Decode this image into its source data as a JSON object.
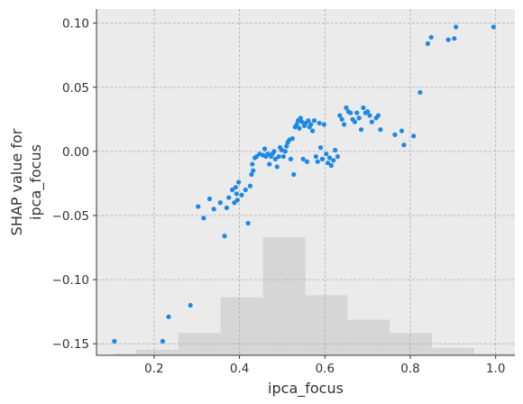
{
  "chart_data": {
    "type": "scatter",
    "title": "",
    "xlabel": "ipca_focus",
    "ylabel_lines": [
      "SHAP value for",
      "ipca_focus"
    ],
    "xlim": [
      0.065,
      1.045
    ],
    "ylim": [
      -0.159,
      0.111
    ],
    "grid": true,
    "background_color": "#ebebeb",
    "point_color": "#1e88e5",
    "histogram_color": "#d6d6d6",
    "x_ticks": [
      {
        "value": 0.2,
        "label": "0.2"
      },
      {
        "value": 0.4,
        "label": "0.4"
      },
      {
        "value": 0.6,
        "label": "0.6"
      },
      {
        "value": 0.8,
        "label": "0.8"
      },
      {
        "value": 1.0,
        "label": "1.0"
      }
    ],
    "y_ticks": [
      {
        "value": 0.1,
        "label": "0.10"
      },
      {
        "value": 0.05,
        "label": "0.05"
      },
      {
        "value": 0.0,
        "label": "0.00"
      },
      {
        "value": -0.05,
        "label": "−0.05"
      },
      {
        "value": -0.1,
        "label": "−0.10"
      },
      {
        "value": -0.15,
        "label": "−0.15"
      }
    ],
    "histogram": {
      "bin_edges": [
        0.11,
        0.158,
        0.257,
        0.356,
        0.455,
        0.554,
        0.653,
        0.752,
        0.851,
        0.95,
        1.045
      ],
      "counts": [
        1,
        3,
        12,
        31,
        63,
        32,
        19,
        12,
        4,
        1
      ]
    },
    "points": [
      [
        0.107,
        -0.148
      ],
      [
        0.22,
        -0.148
      ],
      [
        0.234,
        -0.129
      ],
      [
        0.285,
        -0.12
      ],
      [
        0.303,
        -0.043
      ],
      [
        0.316,
        -0.052
      ],
      [
        0.33,
        -0.037
      ],
      [
        0.34,
        -0.045
      ],
      [
        0.355,
        -0.04
      ],
      [
        0.365,
        -0.066
      ],
      [
        0.37,
        -0.044
      ],
      [
        0.375,
        -0.036
      ],
      [
        0.383,
        -0.03
      ],
      [
        0.388,
        -0.04
      ],
      [
        0.391,
        -0.028
      ],
      [
        0.393,
        -0.033
      ],
      [
        0.395,
        -0.038
      ],
      [
        0.398,
        -0.024
      ],
      [
        0.405,
        -0.034
      ],
      [
        0.414,
        -0.03
      ],
      [
        0.42,
        -0.056
      ],
      [
        0.425,
        -0.027
      ],
      [
        0.428,
        -0.018
      ],
      [
        0.43,
        -0.01
      ],
      [
        0.432,
        -0.015
      ],
      [
        0.436,
        -0.005
      ],
      [
        0.44,
        -0.004
      ],
      [
        0.447,
        -0.002
      ],
      [
        0.455,
        -0.003
      ],
      [
        0.459,
        0.002
      ],
      [
        0.462,
        -0.004
      ],
      [
        0.466,
        -0.002
      ],
      [
        0.47,
        -0.01
      ],
      [
        0.474,
        -0.004
      ],
      [
        0.477,
        -0.002
      ],
      [
        0.481,
        0.0
      ],
      [
        0.484,
        -0.006
      ],
      [
        0.488,
        -0.012
      ],
      [
        0.492,
        -0.004
      ],
      [
        0.495,
        0.003
      ],
      [
        0.499,
        0.001
      ],
      [
        0.503,
        -0.004
      ],
      [
        0.507,
        0.0
      ],
      [
        0.51,
        0.004
      ],
      [
        0.513,
        0.007
      ],
      [
        0.517,
        0.009
      ],
      [
        0.52,
        -0.006
      ],
      [
        0.524,
        0.01
      ],
      [
        0.527,
        -0.018
      ],
      [
        0.53,
        0.019
      ],
      [
        0.534,
        0.021
      ],
      [
        0.537,
        0.024
      ],
      [
        0.54,
        0.018
      ],
      [
        0.543,
        0.026
      ],
      [
        0.546,
        0.023
      ],
      [
        0.549,
        -0.006
      ],
      [
        0.552,
        0.02
      ],
      [
        0.555,
        0.022
      ],
      [
        0.558,
        -0.008
      ],
      [
        0.561,
        0.024
      ],
      [
        0.564,
        0.019
      ],
      [
        0.567,
        0.021
      ],
      [
        0.571,
        0.016
      ],
      [
        0.575,
        0.024
      ],
      [
        0.579,
        -0.004
      ],
      [
        0.583,
        -0.008
      ],
      [
        0.587,
        0.022
      ],
      [
        0.59,
        0.003
      ],
      [
        0.594,
        -0.006
      ],
      [
        0.598,
        0.021
      ],
      [
        0.603,
        -0.002
      ],
      [
        0.607,
        -0.009
      ],
      [
        0.611,
        -0.005
      ],
      [
        0.615,
        -0.011
      ],
      [
        0.62,
        -0.007
      ],
      [
        0.624,
        0.001
      ],
      [
        0.63,
        -0.004
      ],
      [
        0.635,
        0.028
      ],
      [
        0.64,
        0.025
      ],
      [
        0.645,
        0.021
      ],
      [
        0.65,
        0.034
      ],
      [
        0.655,
        0.031
      ],
      [
        0.66,
        0.03
      ],
      [
        0.665,
        0.025
      ],
      [
        0.67,
        0.023
      ],
      [
        0.675,
        0.03
      ],
      [
        0.68,
        0.026
      ],
      [
        0.685,
        0.017
      ],
      [
        0.69,
        0.034
      ],
      [
        0.695,
        0.03
      ],
      [
        0.7,
        0.031
      ],
      [
        0.705,
        0.028
      ],
      [
        0.71,
        0.023
      ],
      [
        0.72,
        0.026
      ],
      [
        0.725,
        0.028
      ],
      [
        0.73,
        0.017
      ],
      [
        0.764,
        0.013
      ],
      [
        0.78,
        0.016
      ],
      [
        0.785,
        0.005
      ],
      [
        0.808,
        0.012
      ],
      [
        0.823,
        0.046
      ],
      [
        0.841,
        0.084
      ],
      [
        0.849,
        0.089
      ],
      [
        0.889,
        0.087
      ],
      [
        0.903,
        0.088
      ],
      [
        0.907,
        0.097
      ],
      [
        0.995,
        0.097
      ]
    ]
  }
}
